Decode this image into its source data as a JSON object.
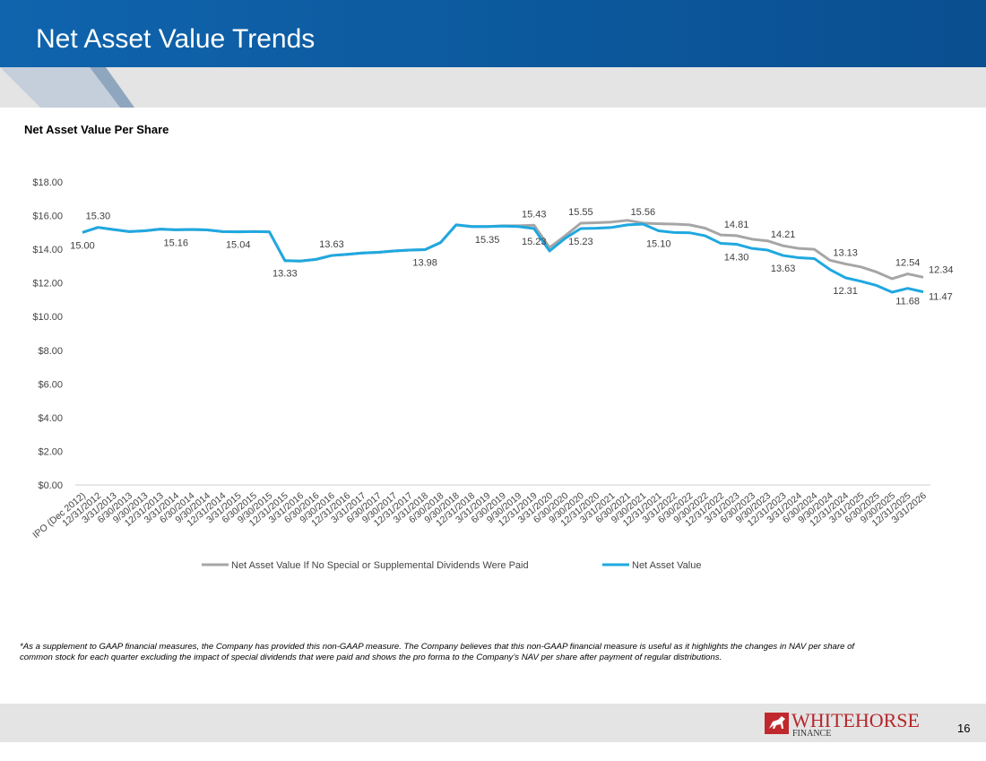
{
  "header": {
    "title": "Net Asset Value Trends"
  },
  "chart_data": {
    "type": "line",
    "title": "Net Asset Value Per Share",
    "categories": [
      "IPO (Dec 2012)",
      "12/31/2012",
      "3/31/2013",
      "6/30/2013",
      "9/30/2013",
      "12/31/2013",
      "3/31/2014",
      "6/30/2014",
      "9/30/2014",
      "12/31/2014",
      "3/31/2015",
      "6/30/2015",
      "9/30/2015",
      "12/31/2015",
      "3/31/2016",
      "6/30/2016",
      "9/30/2016",
      "12/31/2016",
      "3/31/2017",
      "6/30/2017",
      "9/30/2017",
      "12/31/2017",
      "3/31/2018",
      "6/30/2018",
      "9/30/2018",
      "12/31/2018",
      "3/31/2019",
      "6/30/2019",
      "9/30/2019",
      "12/31/2019",
      "3/31/2020",
      "6/30/2020",
      "9/30/2020",
      "12/31/2020",
      "3/31/2021",
      "6/30/2021",
      "9/30/2021",
      "12/31/2021",
      "3/31/2022",
      "6/30/2022",
      "9/30/2022",
      "12/31/2022",
      "3/31/2023",
      "6/30/2023",
      "9/30/2023",
      "12/31/2023",
      "3/31/2024",
      "6/30/2024",
      "9/30/2024",
      "12/31/2024",
      "3/31/2025",
      "6/30/2025",
      "9/30/2025",
      "12/31/2025",
      "3/31/2026"
    ],
    "series": [
      {
        "name": "Net Asset Value If No Special or Supplemental Dividends Were Paid",
        "color": "#a6a6a6",
        "values": [
          15.0,
          15.3,
          15.17,
          15.05,
          15.1,
          15.2,
          15.16,
          15.18,
          15.15,
          15.05,
          15.04,
          15.05,
          15.04,
          13.33,
          13.3,
          13.4,
          13.63,
          13.7,
          13.78,
          13.82,
          13.9,
          13.95,
          13.98,
          14.4,
          15.45,
          15.35,
          15.35,
          15.4,
          15.4,
          15.43,
          14.1,
          14.8,
          15.55,
          15.58,
          15.62,
          15.72,
          15.56,
          15.52,
          15.5,
          15.45,
          15.25,
          14.85,
          14.81,
          14.6,
          14.5,
          14.21,
          14.05,
          14.0,
          13.35,
          13.13,
          12.95,
          12.65,
          12.25,
          12.54,
          12.34
        ],
        "value_labels": [
          null,
          "15.30",
          null,
          null,
          null,
          null,
          null,
          null,
          null,
          null,
          null,
          null,
          null,
          null,
          null,
          null,
          "13.63",
          null,
          null,
          null,
          null,
          null,
          null,
          null,
          null,
          null,
          null,
          null,
          null,
          "15.43",
          null,
          null,
          "15.55",
          null,
          null,
          null,
          "15.56",
          null,
          null,
          null,
          null,
          null,
          "14.81",
          null,
          null,
          "14.21",
          null,
          null,
          null,
          "13.13",
          null,
          null,
          null,
          "12.54",
          "12.34"
        ]
      },
      {
        "name": "Net Asset Value",
        "color": "#1fa8e0",
        "values": [
          15.0,
          15.3,
          15.17,
          15.05,
          15.1,
          15.2,
          15.16,
          15.18,
          15.15,
          15.05,
          15.04,
          15.05,
          15.04,
          13.33,
          13.3,
          13.4,
          13.63,
          13.7,
          13.78,
          13.82,
          13.9,
          13.95,
          13.98,
          14.4,
          15.45,
          15.35,
          15.35,
          15.38,
          15.35,
          15.23,
          13.9,
          14.65,
          15.23,
          15.25,
          15.3,
          15.45,
          15.5,
          15.1,
          15.0,
          14.98,
          14.8,
          14.35,
          14.3,
          14.05,
          13.95,
          13.63,
          13.5,
          13.45,
          12.8,
          12.31,
          12.1,
          11.85,
          11.45,
          11.68,
          11.47
        ],
        "value_labels": [
          "15.00",
          null,
          null,
          null,
          null,
          null,
          "15.16",
          null,
          null,
          null,
          "15.04",
          null,
          null,
          "13.33",
          null,
          null,
          null,
          null,
          null,
          null,
          null,
          null,
          "13.98",
          null,
          null,
          null,
          "15.35",
          null,
          null,
          "15.23",
          null,
          null,
          "15.23",
          null,
          null,
          null,
          null,
          "15.10",
          null,
          null,
          null,
          null,
          "14.30",
          null,
          null,
          "13.63",
          null,
          null,
          null,
          "12.31",
          null,
          null,
          null,
          "11.68",
          "11.47"
        ]
      }
    ],
    "ylim": [
      0,
      18
    ],
    "yticks": [
      {
        "value": 0,
        "label": "$0.00"
      },
      {
        "value": 2,
        "label": "$2.00"
      },
      {
        "value": 4,
        "label": "$4.00"
      },
      {
        "value": 6,
        "label": "$6.00"
      },
      {
        "value": 8,
        "label": "$8.00"
      },
      {
        "value": 10,
        "label": "$10.00"
      },
      {
        "value": 12,
        "label": "$12.00"
      },
      {
        "value": 14,
        "label": "$14.00"
      },
      {
        "value": 16,
        "label": "$16.00"
      },
      {
        "value": 18,
        "label": "$18.00"
      }
    ],
    "grid": false,
    "legend": "bottom"
  },
  "footnote": "*As a supplement to GAAP financial measures, the Company has provided this non-GAAP measure. The Company believes that this non-GAAP financial measure is useful as it highlights the changes in NAV per share of common stock for each quarter excluding the impact of special dividends that were paid and shows the pro forma to the Company’s NAV per share after payment of regular distributions.",
  "footer": {
    "logo_main": "WHITEHORSE",
    "logo_sub": "FINANCE",
    "page_number": "16"
  }
}
